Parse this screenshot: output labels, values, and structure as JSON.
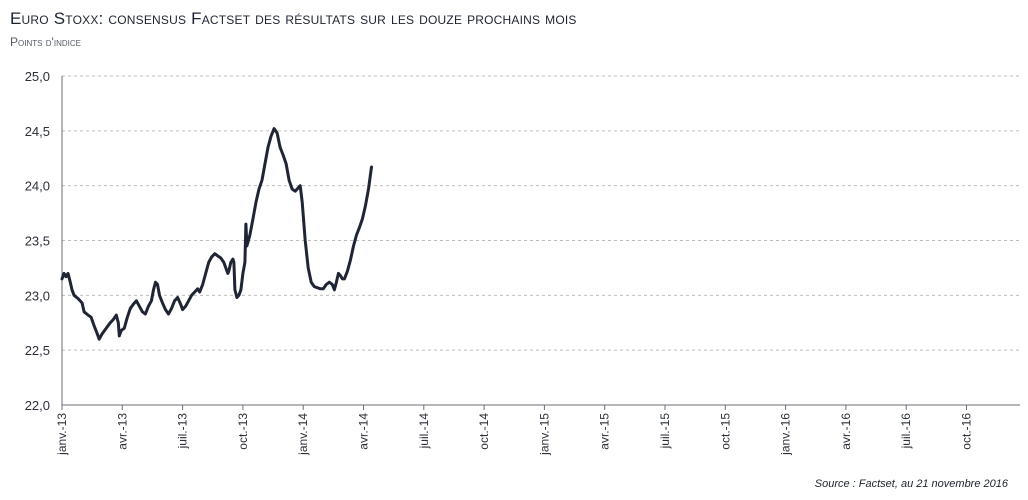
{
  "chart_data": {
    "type": "line",
    "title": "Euro Stoxx: consensus Factset des résultats sur les douze prochains mois",
    "subtitle": "Points d'indice",
    "source": "Source : Factset, au 21 novembre 2016",
    "xlabel": "",
    "ylabel": "",
    "ylim": [
      22.0,
      25.0
    ],
    "yticks": [
      "25,0",
      "24,5",
      "24,0",
      "23,5",
      "23,0",
      "22,5",
      "22,0"
    ],
    "xticks": [
      "janv.-13",
      "avr.-13",
      "juil.-13",
      "oct.-13",
      "janv.-14",
      "avr.-14",
      "juil.-14",
      "oct.-14",
      "janv.-15",
      "avr.-15",
      "juil.-15",
      "oct.-15",
      "janv.-16",
      "avr.-16",
      "juil.-16",
      "oct.-16"
    ],
    "grid": true,
    "series": [
      {
        "color": "#1f2535",
        "points": [
          [
            0.0,
            23.15
          ],
          [
            0.1,
            23.2
          ],
          [
            0.2,
            23.17
          ],
          [
            0.3,
            23.2
          ],
          [
            0.4,
            23.13
          ],
          [
            0.5,
            23.05
          ],
          [
            0.6,
            23.0
          ],
          [
            0.8,
            22.97
          ],
          [
            0.9,
            22.95
          ],
          [
            1.0,
            22.93
          ],
          [
            1.1,
            22.85
          ],
          [
            1.3,
            22.82
          ],
          [
            1.45,
            22.8
          ],
          [
            1.6,
            22.72
          ],
          [
            1.75,
            22.65
          ],
          [
            1.85,
            22.6
          ],
          [
            2.0,
            22.65
          ],
          [
            2.2,
            22.7
          ],
          [
            2.4,
            22.75
          ],
          [
            2.55,
            22.78
          ],
          [
            2.7,
            22.82
          ],
          [
            2.8,
            22.75
          ],
          [
            2.85,
            22.63
          ],
          [
            2.95,
            22.68
          ],
          [
            3.1,
            22.7
          ],
          [
            3.25,
            22.8
          ],
          [
            3.4,
            22.88
          ],
          [
            3.55,
            22.92
          ],
          [
            3.7,
            22.95
          ],
          [
            3.85,
            22.9
          ],
          [
            4.0,
            22.85
          ],
          [
            4.15,
            22.83
          ],
          [
            4.3,
            22.9
          ],
          [
            4.45,
            22.95
          ],
          [
            4.55,
            23.05
          ],
          [
            4.65,
            23.12
          ],
          [
            4.75,
            23.1
          ],
          [
            4.85,
            23.0
          ],
          [
            5.0,
            22.93
          ],
          [
            5.15,
            22.87
          ],
          [
            5.3,
            22.83
          ],
          [
            5.45,
            22.88
          ],
          [
            5.6,
            22.95
          ],
          [
            5.75,
            22.98
          ],
          [
            5.9,
            22.92
          ],
          [
            6.0,
            22.87
          ],
          [
            6.15,
            22.9
          ],
          [
            6.3,
            22.95
          ],
          [
            6.45,
            23.0
          ],
          [
            6.6,
            23.03
          ],
          [
            6.75,
            23.06
          ],
          [
            6.85,
            23.03
          ],
          [
            7.0,
            23.1
          ],
          [
            7.15,
            23.2
          ],
          [
            7.3,
            23.3
          ],
          [
            7.45,
            23.35
          ],
          [
            7.6,
            23.38
          ],
          [
            7.75,
            23.36
          ],
          [
            7.9,
            23.34
          ],
          [
            8.05,
            23.3
          ],
          [
            8.15,
            23.25
          ],
          [
            8.25,
            23.2
          ],
          [
            8.3,
            23.22
          ],
          [
            8.4,
            23.3
          ],
          [
            8.5,
            23.33
          ],
          [
            8.55,
            23.3
          ],
          [
            8.6,
            23.05
          ],
          [
            8.7,
            22.98
          ],
          [
            8.8,
            23.0
          ],
          [
            8.9,
            23.05
          ],
          [
            9.0,
            23.2
          ],
          [
            9.1,
            23.3
          ],
          [
            9.15,
            23.65
          ],
          [
            9.2,
            23.45
          ],
          [
            9.35,
            23.55
          ],
          [
            9.5,
            23.7
          ],
          [
            9.65,
            23.85
          ],
          [
            9.8,
            23.97
          ],
          [
            9.95,
            24.05
          ],
          [
            10.1,
            24.2
          ],
          [
            10.25,
            24.35
          ],
          [
            10.4,
            24.45
          ],
          [
            10.55,
            24.52
          ],
          [
            10.7,
            24.48
          ],
          [
            10.85,
            24.35
          ],
          [
            11.0,
            24.28
          ],
          [
            11.15,
            24.2
          ],
          [
            11.3,
            24.05
          ],
          [
            11.45,
            23.97
          ],
          [
            11.6,
            23.95
          ],
          [
            11.75,
            23.98
          ],
          [
            11.85,
            24.0
          ],
          [
            11.95,
            23.85
          ],
          [
            12.1,
            23.5
          ],
          [
            12.25,
            23.25
          ],
          [
            12.4,
            23.12
          ],
          [
            12.55,
            23.08
          ],
          [
            12.7,
            23.07
          ],
          [
            12.85,
            23.06
          ],
          [
            13.0,
            23.06
          ],
          [
            13.15,
            23.1
          ],
          [
            13.3,
            23.12
          ],
          [
            13.45,
            23.1
          ],
          [
            13.55,
            23.05
          ],
          [
            13.65,
            23.12
          ],
          [
            13.75,
            23.2
          ],
          [
            13.85,
            23.18
          ],
          [
            13.95,
            23.15
          ],
          [
            14.05,
            23.15
          ],
          [
            14.2,
            23.22
          ],
          [
            14.35,
            23.32
          ],
          [
            14.5,
            23.45
          ],
          [
            14.65,
            23.55
          ],
          [
            14.8,
            23.62
          ],
          [
            14.95,
            23.7
          ],
          [
            15.1,
            23.82
          ],
          [
            15.25,
            23.97
          ],
          [
            15.4,
            24.17
          ]
        ]
      }
    ]
  }
}
